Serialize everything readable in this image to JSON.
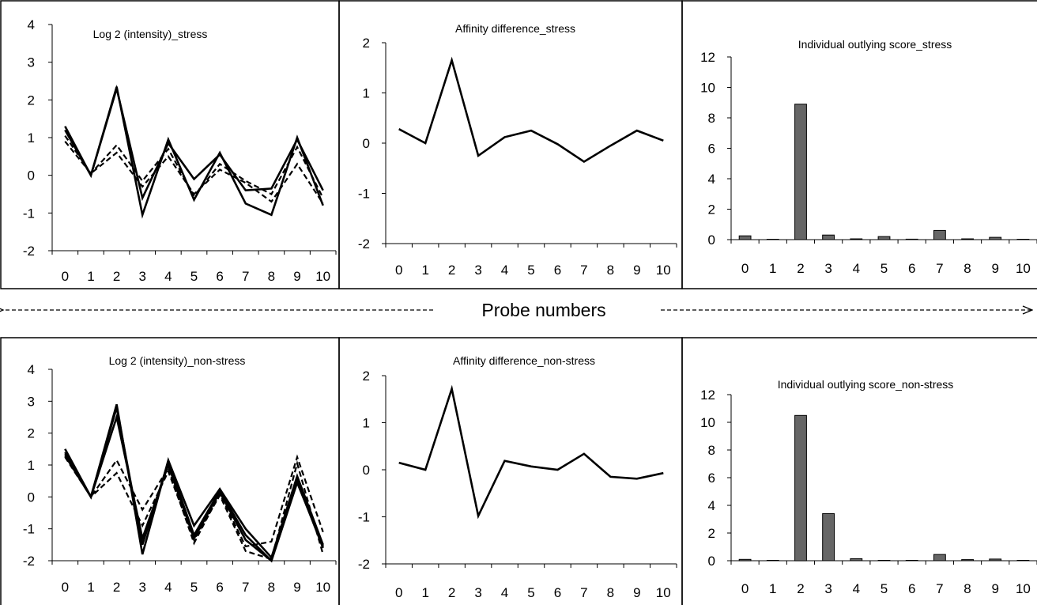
{
  "shared_axis_label": "Probe numbers",
  "colors": {
    "line": "#000000",
    "bar_fill": "#666666",
    "bar_stroke": "#000000",
    "frame": "#000000"
  },
  "chart_data": [
    {
      "id": "log2-stress",
      "type": "line",
      "title": "Log 2 (intensity)_stress",
      "xlabel": "",
      "ylabel": "",
      "categories": [
        "0",
        "1",
        "2",
        "3",
        "4",
        "5",
        "6",
        "7",
        "8",
        "9",
        "10"
      ],
      "ylim": [
        -2,
        4
      ],
      "yticks": [
        -2,
        -1,
        0,
        1,
        2,
        3,
        4
      ],
      "grid": false,
      "series": [
        {
          "style": "solid",
          "values": [
            1.3,
            0.0,
            2.35,
            -1.05,
            0.95,
            -0.65,
            0.6,
            -0.75,
            -1.05,
            1.0,
            -0.8
          ]
        },
        {
          "style": "solid",
          "values": [
            1.2,
            0.0,
            2.3,
            -0.6,
            0.85,
            -0.1,
            0.55,
            -0.4,
            -0.35,
            0.95,
            -0.4
          ]
        },
        {
          "style": "dashed",
          "values": [
            1.05,
            0.05,
            0.8,
            -0.15,
            0.7,
            -0.55,
            0.3,
            -0.15,
            -0.5,
            0.75,
            -0.6
          ]
        },
        {
          "style": "dashed",
          "values": [
            0.9,
            0.05,
            0.6,
            -0.3,
            0.5,
            -0.5,
            0.15,
            -0.2,
            -0.7,
            0.3,
            -0.75
          ]
        }
      ]
    },
    {
      "id": "affinity-stress",
      "type": "line",
      "title": "Affinity difference_stress",
      "xlabel": "",
      "ylabel": "",
      "categories": [
        "0",
        "1",
        "2",
        "3",
        "4",
        "5",
        "6",
        "7",
        "8",
        "9",
        "10"
      ],
      "ylim": [
        -2,
        2
      ],
      "yticks": [
        -2,
        -1,
        0,
        1,
        2
      ],
      "grid": false,
      "series": [
        {
          "style": "solid",
          "values": [
            0.28,
            0.0,
            1.65,
            -0.25,
            0.12,
            0.25,
            -0.02,
            -0.37,
            -0.05,
            0.25,
            0.05
          ]
        }
      ]
    },
    {
      "id": "outlying-stress",
      "type": "bar",
      "title": "Individual outlying score_stress",
      "xlabel": "",
      "ylabel": "",
      "categories": [
        "0",
        "1",
        "2",
        "3",
        "4",
        "5",
        "6",
        "7",
        "8",
        "9",
        "10"
      ],
      "ylim": [
        0,
        12
      ],
      "yticks": [
        0,
        2,
        4,
        6,
        8,
        10,
        12
      ],
      "grid": false,
      "values": [
        0.25,
        0.02,
        8.9,
        0.3,
        0.05,
        0.2,
        0.03,
        0.6,
        0.05,
        0.15,
        0.02
      ]
    },
    {
      "id": "log2-nonstress",
      "type": "line",
      "title": "Log 2 (intensity)_non-stress",
      "xlabel": "",
      "ylabel": "",
      "categories": [
        "0",
        "1",
        "2",
        "3",
        "4",
        "5",
        "6",
        "7",
        "8",
        "9",
        "10"
      ],
      "ylim": [
        -2,
        4
      ],
      "yticks": [
        -2,
        -1,
        0,
        1,
        2,
        3,
        4
      ],
      "grid": false,
      "series": [
        {
          "style": "solid",
          "values": [
            1.5,
            0.0,
            2.9,
            -1.8,
            1.15,
            -0.9,
            0.25,
            -1.0,
            -1.9,
            0.65,
            -1.5
          ]
        },
        {
          "style": "solid",
          "values": [
            1.4,
            0.0,
            2.8,
            -1.5,
            1.1,
            -1.2,
            0.2,
            -1.2,
            -2.0,
            0.5,
            -1.6
          ]
        },
        {
          "style": "solid",
          "values": [
            1.3,
            0.0,
            2.5,
            -1.3,
            1.0,
            -1.3,
            0.15,
            -1.35,
            -2.0,
            0.45,
            -1.55
          ]
        },
        {
          "style": "dashed",
          "values": [
            1.35,
            0.0,
            1.15,
            -0.4,
            0.9,
            -1.45,
            0.1,
            -1.55,
            -1.4,
            1.25,
            -1.1
          ]
        },
        {
          "style": "dashed",
          "values": [
            1.25,
            0.0,
            0.75,
            -0.9,
            0.8,
            -1.35,
            0.05,
            -1.7,
            -1.95,
            1.05,
            -1.8
          ]
        }
      ]
    },
    {
      "id": "affinity-nonstress",
      "type": "line",
      "title": "Affinity difference_non-stress",
      "xlabel": "",
      "ylabel": "",
      "categories": [
        "0",
        "1",
        "2",
        "3",
        "4",
        "5",
        "6",
        "7",
        "8",
        "9",
        "10"
      ],
      "ylim": [
        -2,
        2
      ],
      "yticks": [
        -2,
        -1,
        0,
        1,
        2
      ],
      "grid": false,
      "series": [
        {
          "style": "solid",
          "values": [
            0.15,
            0.0,
            1.72,
            -0.98,
            0.19,
            0.07,
            0.0,
            0.34,
            -0.15,
            -0.19,
            -0.07
          ]
        }
      ]
    },
    {
      "id": "outlying-nonstress",
      "type": "bar",
      "title": "Individual outlying score_non-stress",
      "xlabel": "",
      "ylabel": "",
      "categories": [
        "0",
        "1",
        "2",
        "3",
        "4",
        "5",
        "6",
        "7",
        "8",
        "9",
        "10"
      ],
      "ylim": [
        0,
        12
      ],
      "yticks": [
        0,
        2,
        4,
        6,
        8,
        10,
        12
      ],
      "grid": false,
      "values": [
        0.1,
        0.02,
        10.5,
        3.4,
        0.15,
        0.03,
        0.02,
        0.45,
        0.08,
        0.12,
        0.02
      ]
    }
  ]
}
